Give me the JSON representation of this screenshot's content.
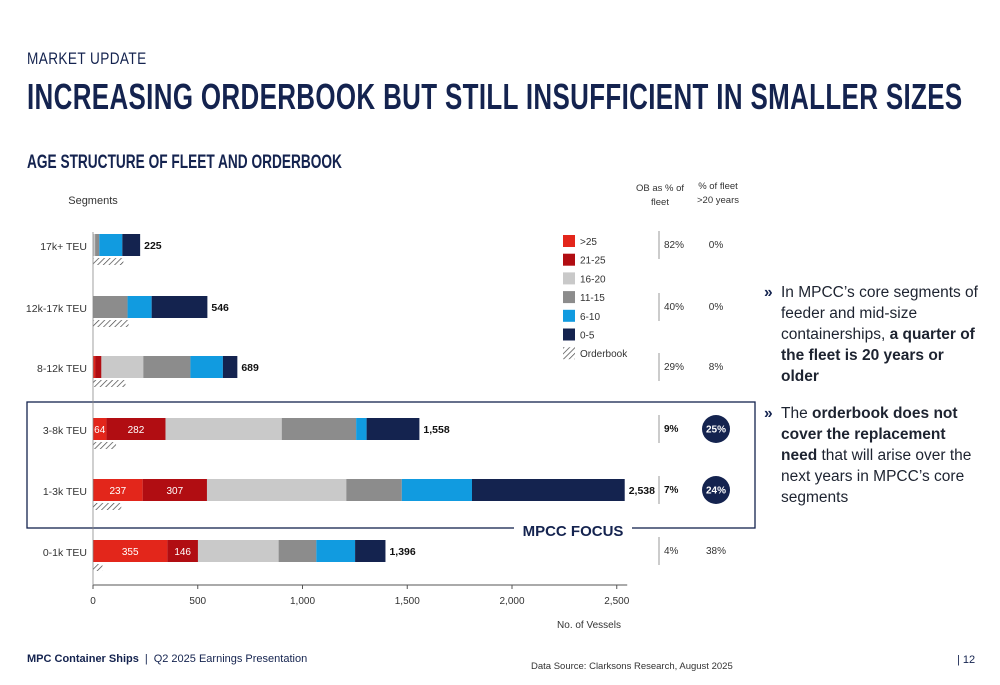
{
  "header": {
    "kicker": "MARKET UPDATE",
    "title": "INCREASING ORDERBOOK BUT STILL INSUFFICIENT IN SMALLER SIZES"
  },
  "chart_title": "AGE STRUCTURE OF FLEET AND ORDERBOOK",
  "chart_data": {
    "type": "bar",
    "orientation": "horizontal",
    "stacked": true,
    "ylabel": "Segments",
    "xlabel": "No. of Vessels",
    "xlim": [
      0,
      2550
    ],
    "xticks": [
      0,
      500,
      1000,
      1500,
      2000,
      2500
    ],
    "xtick_labels": [
      "0",
      "500",
      "1,000",
      "1,500",
      "2,000",
      "2,500"
    ],
    "categories": [
      "17k+ TEU",
      "12k-17k TEU",
      "8-12k TEU",
      "3-8k TEU",
      "1-3k TEU",
      "0-1k TEU"
    ],
    "totals": [
      225,
      546,
      689,
      1558,
      2538,
      1396
    ],
    "total_labels": [
      "225",
      "546",
      "689",
      "1,558",
      "2,538",
      "1,396"
    ],
    "series": [
      {
        "name": ">25",
        "color": "#e3261b",
        "values": [
          0,
          0,
          10,
          64,
          237,
          355
        ],
        "labels": [
          "",
          "",
          "",
          "64",
          "237",
          "355"
        ]
      },
      {
        "name": "21-25",
        "color": "#b10d12",
        "values": [
          0,
          0,
          30,
          282,
          307,
          146
        ],
        "labels": [
          "",
          "",
          "",
          "282",
          "307",
          "146"
        ]
      },
      {
        "name": "16-20",
        "color": "#c9c9c9",
        "values": [
          10,
          0,
          200,
          555,
          665,
          385
        ],
        "labels": [
          "",
          "",
          "",
          "",
          "",
          ""
        ]
      },
      {
        "name": "11-15",
        "color": "#8c8c8c",
        "values": [
          20,
          165,
          225,
          355,
          265,
          180
        ],
        "labels": [
          "",
          "",
          "",
          "",
          "",
          ""
        ]
      },
      {
        "name": "6-10",
        "color": "#119be0",
        "values": [
          110,
          115,
          155,
          50,
          335,
          185
        ],
        "labels": [
          "",
          "",
          "",
          "",
          "",
          ""
        ]
      },
      {
        "name": "0-5",
        "color": "#14234f",
        "values": [
          85,
          266,
          69,
          252,
          729,
          145
        ],
        "labels": [
          "",
          "",
          "",
          "",
          "",
          ""
        ]
      }
    ],
    "orderbook": {
      "name": "Orderbook",
      "values": [
        145,
        170,
        155,
        110,
        135,
        45
      ]
    },
    "legend": {
      "position": "right",
      "order": [
        ">25",
        "21-25",
        "16-20",
        "11-15",
        "6-10",
        "0-5",
        "Orderbook"
      ]
    },
    "grid": false,
    "side_columns": {
      "ob_header": [
        "OB as % of",
        "fleet"
      ],
      "old_header": [
        "% of fleet",
        ">20 years"
      ],
      "ob_pct": [
        "82%",
        "40%",
        "29%",
        "9%",
        "7%",
        "4%"
      ],
      "old_pct": [
        "0%",
        "0%",
        "8%",
        "25%",
        "24%",
        "38%"
      ]
    },
    "annotation": "MPCC FOCUS"
  },
  "bullets": [
    {
      "text_before": "In MPCC’s core segments of feeder and mid-size containerships, ",
      "bold": "a quarter of the fleet is 20 years or older",
      "text_after": ""
    },
    {
      "text_before": "The ",
      "bold": "orderbook does not cover the replacement need",
      "text_after": " that will arise over the next years in MPCC’s core segments"
    }
  ],
  "bullet_marker": "»",
  "footer": {
    "brand": "MPC Container Ships",
    "separator": "|",
    "presentation": "Q2 2025 Earnings Presentation",
    "source": "Data Source: Clarksons Research, August 2025",
    "page": "| 12"
  },
  "colors": {
    "navy": "#14234f",
    "accent_blue": "#119be0",
    "red": "#e3261b",
    "dark_red": "#b10d12"
  }
}
